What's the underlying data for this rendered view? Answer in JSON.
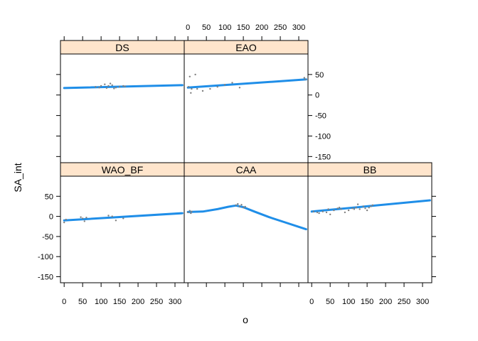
{
  "chart_data": {
    "type": "scatter",
    "xlabel": "o",
    "ylabel": "SA_int",
    "xlim": [
      -10,
      325
    ],
    "ylim": [
      -165,
      100
    ],
    "xticks": [
      0,
      50,
      100,
      150,
      200,
      250,
      300
    ],
    "yticks": [
      -150,
      -100,
      -50,
      0,
      50
    ],
    "point_color": "#808080",
    "line_color": "#1f8ee8",
    "strip_color": "#ffe5cc",
    "panels": [
      {
        "name": "DS",
        "row": "top",
        "col": 0,
        "points": [
          [
            85,
            20
          ],
          [
            95,
            18
          ],
          [
            100,
            22
          ],
          [
            110,
            26
          ],
          [
            115,
            17
          ],
          [
            120,
            22
          ],
          [
            125,
            28
          ],
          [
            130,
            24
          ],
          [
            135,
            16
          ],
          [
            140,
            18
          ],
          [
            150,
            20
          ],
          [
            160,
            22
          ],
          [
            165,
            21
          ]
        ],
        "line": [
          [
            0,
            17
          ],
          [
            320,
            24
          ]
        ]
      },
      {
        "name": "EAO",
        "row": "top",
        "col": 1,
        "points": [
          [
            2,
            20
          ],
          [
            5,
            45
          ],
          [
            8,
            5
          ],
          [
            10,
            15
          ],
          [
            20,
            50
          ],
          [
            25,
            15
          ],
          [
            40,
            10
          ],
          [
            60,
            15
          ],
          [
            80,
            20
          ],
          [
            100,
            25
          ],
          [
            120,
            30
          ],
          [
            140,
            18
          ],
          [
            315,
            42
          ],
          [
            318,
            38
          ]
        ],
        "line": [
          [
            0,
            18
          ],
          [
            320,
            38
          ]
        ]
      },
      {
        "name": "WAO_BF",
        "row": "bottom",
        "col": 0,
        "points": [
          [
            0,
            -15
          ],
          [
            5,
            -8
          ],
          [
            45,
            -2
          ],
          [
            50,
            -5
          ],
          [
            55,
            -12
          ],
          [
            60,
            -3
          ],
          [
            120,
            2
          ],
          [
            130,
            0
          ],
          [
            140,
            -10
          ],
          [
            160,
            -5
          ]
        ],
        "line": [
          [
            0,
            -10
          ],
          [
            320,
            8
          ]
        ]
      },
      {
        "name": "CAA",
        "row": "bottom",
        "col": 1,
        "points": [
          [
            0,
            10
          ],
          [
            5,
            14
          ],
          [
            8,
            8
          ],
          [
            10,
            12
          ],
          [
            130,
            28
          ],
          [
            135,
            31
          ],
          [
            140,
            25
          ],
          [
            145,
            29
          ],
          [
            150,
            22
          ],
          [
            155,
            24
          ]
        ],
        "line": [
          [
            0,
            11
          ],
          [
            40,
            12
          ],
          [
            80,
            18
          ],
          [
            110,
            24
          ],
          [
            130,
            27
          ],
          [
            150,
            23
          ],
          [
            180,
            12
          ],
          [
            220,
            -2
          ],
          [
            260,
            -14
          ],
          [
            300,
            -26
          ],
          [
            320,
            -32
          ]
        ]
      },
      {
        "name": "BB",
        "row": "bottom",
        "col": 2,
        "points": [
          [
            5,
            12
          ],
          [
            15,
            10
          ],
          [
            20,
            8
          ],
          [
            30,
            12
          ],
          [
            40,
            10
          ],
          [
            45,
            18
          ],
          [
            50,
            5
          ],
          [
            60,
            15
          ],
          [
            70,
            20
          ],
          [
            75,
            22
          ],
          [
            80,
            18
          ],
          [
            90,
            10
          ],
          [
            100,
            15
          ],
          [
            110,
            20
          ],
          [
            115,
            18
          ],
          [
            120,
            22
          ],
          [
            125,
            30
          ],
          [
            130,
            18
          ],
          [
            140,
            25
          ],
          [
            145,
            20
          ],
          [
            150,
            15
          ],
          [
            155,
            22
          ],
          [
            160,
            25
          ],
          [
            165,
            28
          ]
        ],
        "line": [
          [
            0,
            12
          ],
          [
            320,
            40
          ]
        ]
      }
    ]
  }
}
